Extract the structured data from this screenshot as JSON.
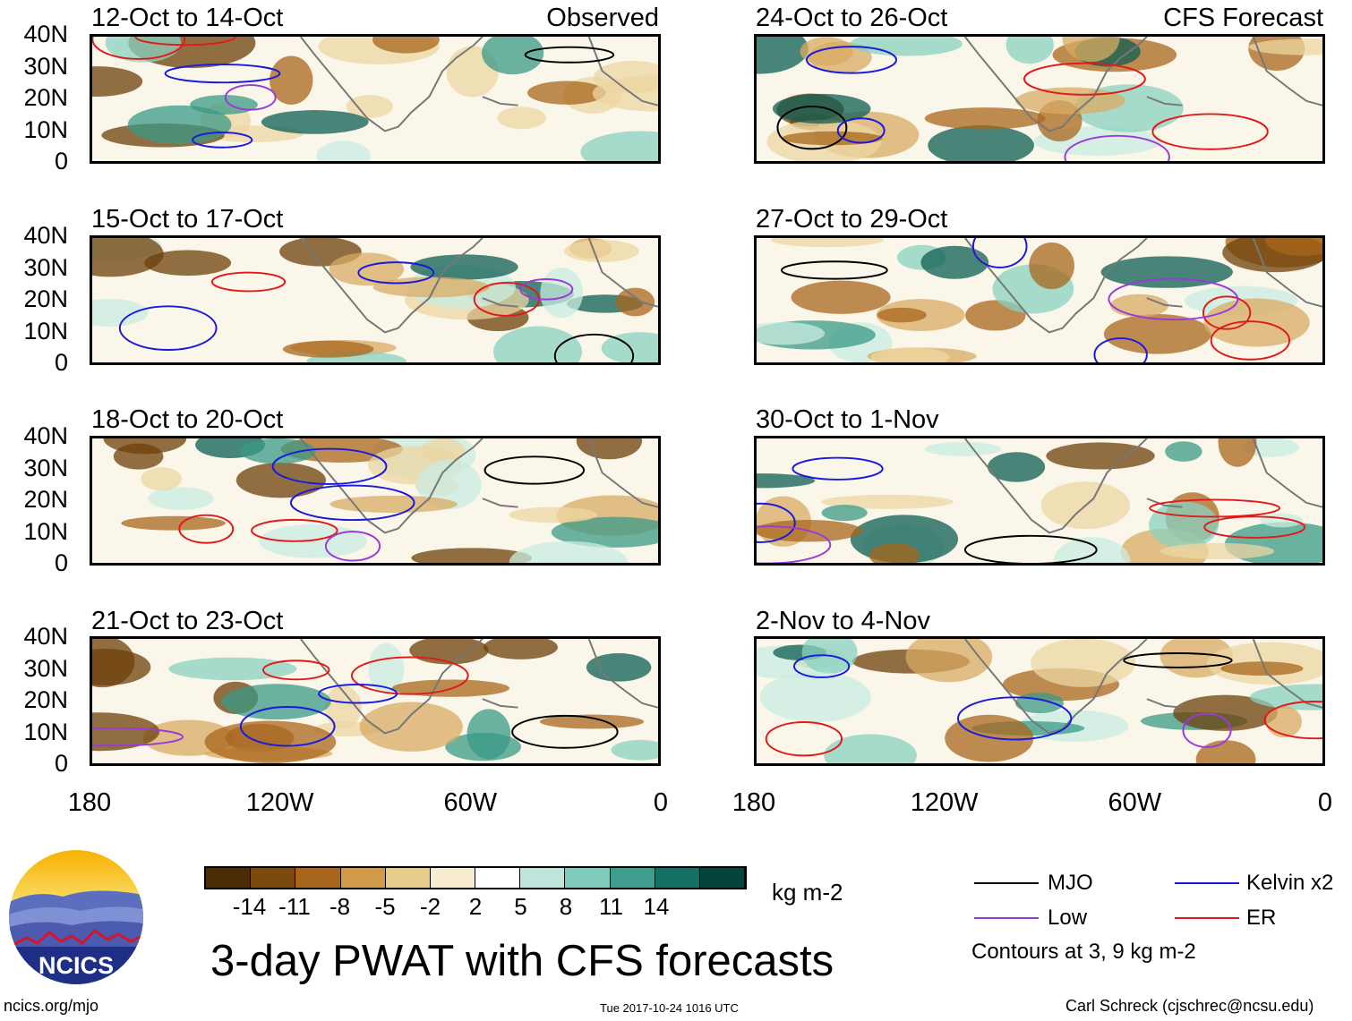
{
  "title": "3-day PWAT with CFS forecasts",
  "units": "kg m-2",
  "y_labels": [
    "40N",
    "30N",
    "20N",
    "10N",
    "0"
  ],
  "x_labels": [
    "180",
    "120W",
    "60W",
    "0"
  ],
  "columns": {
    "left": {
      "label": "Observed"
    },
    "right": {
      "label": "CFS Forecast"
    }
  },
  "panels": {
    "left": [
      {
        "period": "12-Oct to 14-Oct"
      },
      {
        "period": "15-Oct to 17-Oct"
      },
      {
        "period": "18-Oct to 20-Oct"
      },
      {
        "period": "21-Oct to 23-Oct"
      }
    ],
    "right": [
      {
        "period": "24-Oct to 26-Oct"
      },
      {
        "period": "27-Oct to 29-Oct"
      },
      {
        "period": "30-Oct to 1-Nov"
      },
      {
        "period": "2-Nov to 4-Nov"
      }
    ]
  },
  "colorbar": {
    "labels": [
      "-14",
      "-11",
      "-8",
      "-5",
      "-2",
      "2",
      "5",
      "8",
      "11",
      "14"
    ],
    "colors": [
      "#4a2c06",
      "#7c4a0e",
      "#a8661c",
      "#cf9a4a",
      "#e8cc8c",
      "#f7ecd0",
      "#ffffff",
      "#bfe6dc",
      "#7fcbbb",
      "#3e9d8c",
      "#156f63",
      "#04443c"
    ]
  },
  "legend": {
    "items": [
      {
        "name": "MJO",
        "color": "#000000"
      },
      {
        "name": "Kelvin x2",
        "color": "#1a1adc"
      },
      {
        "name": "Low",
        "color": "#9a3ad8"
      },
      {
        "name": "ER",
        "color": "#e01a1a"
      }
    ],
    "note": "Contours at 3, 9 kg m-2"
  },
  "logo": {
    "text": "NCICS"
  },
  "footer": {
    "url": "ncics.org/mjo",
    "timestamp": "Tue 2017-10-24 1016 UTC",
    "credit": "Carl Schreck (cjschrec@ncsu.edu)"
  }
}
